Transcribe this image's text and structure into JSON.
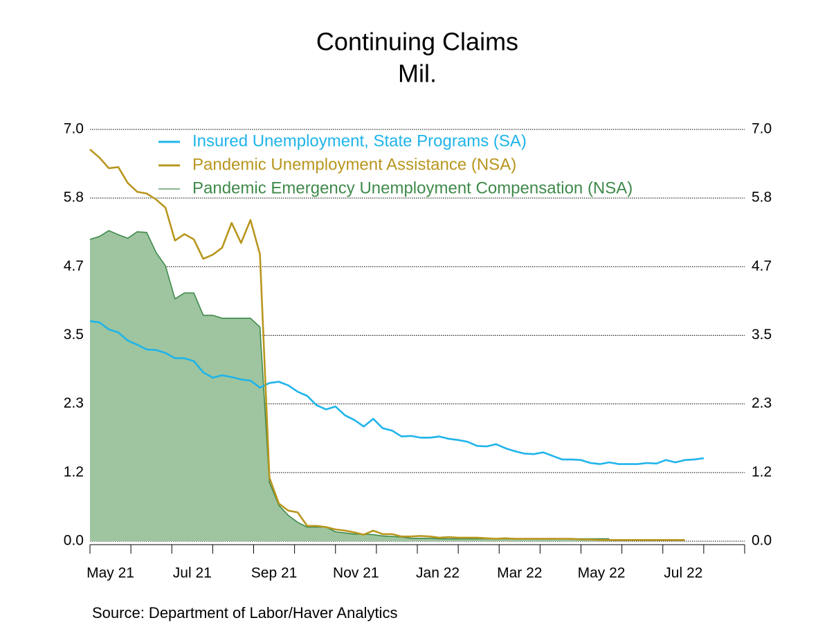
{
  "chart_data": {
    "type": "line",
    "title": "Continuing Claims",
    "subtitle": "Mil.",
    "source": "Source:  Department of Labor/Haver Analytics",
    "x": [
      0,
      0.231,
      0.462,
      0.692,
      0.923,
      1.154,
      1.385,
      1.615,
      1.846,
      2.077,
      2.308,
      2.538,
      2.769,
      3,
      3.231,
      3.462,
      3.692,
      3.923,
      4.154,
      4.385,
      4.615,
      4.846,
      5.077,
      5.308,
      5.538,
      5.769,
      6,
      6.231,
      6.462,
      6.692,
      6.923,
      7.154,
      7.385,
      7.615,
      7.846,
      8.077,
      8.308,
      8.538,
      8.769,
      9,
      9.231,
      9.462,
      9.692,
      9.923,
      10.154,
      10.385,
      10.615,
      10.846,
      11.077,
      11.308,
      11.538,
      11.769,
      12,
      12.231,
      12.462,
      12.692,
      12.923,
      13.154,
      13.385,
      13.615,
      13.846,
      14.077,
      14.308,
      14.538,
      14.769,
      15
    ],
    "series": [
      {
        "name": "Insured Unemployment, State Programs (SA)",
        "color": "#1fb4ea",
        "fill": false,
        "values": [
          3.74,
          3.72,
          3.6,
          3.55,
          3.41,
          3.34,
          3.26,
          3.25,
          3.2,
          3.11,
          3.11,
          3.06,
          2.87,
          2.78,
          2.82,
          2.79,
          2.75,
          2.73,
          2.61,
          2.69,
          2.71,
          2.65,
          2.54,
          2.47,
          2.31,
          2.24,
          2.29,
          2.14,
          2.06,
          1.95,
          2.08,
          1.92,
          1.88,
          1.78,
          1.79,
          1.76,
          1.76,
          1.78,
          1.74,
          1.72,
          1.69,
          1.62,
          1.61,
          1.65,
          1.58,
          1.53,
          1.49,
          1.48,
          1.51,
          1.45,
          1.39,
          1.39,
          1.38,
          1.33,
          1.31,
          1.34,
          1.31,
          1.31,
          1.31,
          1.33,
          1.32,
          1.38,
          1.34,
          1.38,
          1.39,
          1.41
        ]
      },
      {
        "name": "Pandemic Unemployment Assistance (NSA)",
        "color": "#b8961e",
        "fill": false,
        "values": [
          6.66,
          6.52,
          6.34,
          6.36,
          6.09,
          5.94,
          5.91,
          5.81,
          5.67,
          5.11,
          5.22,
          5.13,
          4.8,
          4.87,
          4.99,
          5.41,
          5.07,
          5.46,
          4.88,
          1.08,
          0.64,
          0.52,
          0.49,
          0.26,
          0.26,
          0.24,
          0.2,
          0.18,
          0.15,
          0.11,
          0.18,
          0.12,
          0.12,
          0.08,
          0.08,
          0.09,
          0.08,
          0.06,
          0.07,
          0.06,
          0.06,
          0.06,
          0.05,
          0.04,
          0.05,
          0.04,
          0.04,
          0.04,
          0.04,
          0.04,
          0.04,
          0.04,
          0.03,
          0.03,
          0.02,
          0.02,
          0.02,
          0.02,
          0.02,
          0.02,
          0.02,
          0.02,
          0.02,
          0.02,
          null,
          null
        ]
      },
      {
        "name": "Pandemic Emergency Unemployment Compensation (NSA)",
        "color": "#3f8a4a",
        "fill": true,
        "fill_color": "#9ec59f",
        "values": [
          5.13,
          5.18,
          5.28,
          5.21,
          5.15,
          5.26,
          5.25,
          4.91,
          4.68,
          4.12,
          4.22,
          4.22,
          3.84,
          3.84,
          3.79,
          3.79,
          3.79,
          3.79,
          3.64,
          1.0,
          0.61,
          0.44,
          0.32,
          0.24,
          0.24,
          0.24,
          0.16,
          0.14,
          0.12,
          0.12,
          0.11,
          0.09,
          0.08,
          0.07,
          0.05,
          0.05,
          0.05,
          0.04,
          0.04,
          0.04,
          0.04,
          0.04,
          0.04,
          0.04,
          0.04,
          0.04,
          0.04,
          0.04,
          0.04,
          0.04,
          0.04,
          0.04,
          0.04,
          0.04,
          0.04,
          0.04,
          null,
          null,
          null,
          null,
          null,
          null,
          null,
          null,
          null,
          null
        ]
      }
    ],
    "xlim": [
      0,
      16
    ],
    "minor_xticks": [
      0,
      1,
      2,
      3,
      4,
      5,
      6,
      7,
      8,
      9,
      10,
      11,
      12,
      13,
      14,
      15,
      16
    ],
    "xticks": [
      {
        "value": 0.5,
        "label": "May 21"
      },
      {
        "value": 2.5,
        "label": "Jul 21"
      },
      {
        "value": 4.5,
        "label": "Sep 21"
      },
      {
        "value": 6.5,
        "label": "Nov 21"
      },
      {
        "value": 8.5,
        "label": "Jan 22"
      },
      {
        "value": 10.5,
        "label": "Mar 22"
      },
      {
        "value": 12.5,
        "label": "May 22"
      },
      {
        "value": 14.5,
        "label": "Jul 22"
      }
    ],
    "ylim": [
      0,
      7
    ],
    "yticks": [
      {
        "value": 0,
        "label": "0.0"
      },
      {
        "value": 1.1667,
        "label": "1.2"
      },
      {
        "value": 2.3333,
        "label": "2.3"
      },
      {
        "value": 3.5,
        "label": "3.5"
      },
      {
        "value": 4.6667,
        "label": "4.7"
      },
      {
        "value": 5.8333,
        "label": "5.8"
      },
      {
        "value": 7,
        "label": "7.0"
      }
    ],
    "y2lim": [
      0,
      7
    ],
    "y2ticks": [
      {
        "value": 0,
        "label": "0.0"
      },
      {
        "value": 1.1667,
        "label": "1.2"
      },
      {
        "value": 2.3333,
        "label": "2.3"
      },
      {
        "value": 3.5,
        "label": "3.5"
      },
      {
        "value": 4.6667,
        "label": "4.7"
      },
      {
        "value": 5.8333,
        "label": "5.8"
      },
      {
        "value": 7,
        "label": "7.0"
      }
    ],
    "grid": true,
    "legend": "top-left"
  }
}
